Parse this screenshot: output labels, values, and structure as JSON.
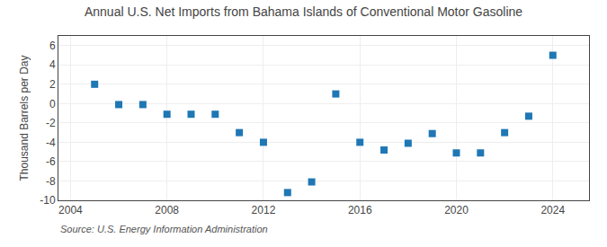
{
  "chart_data": {
    "type": "scatter",
    "title": "Annual U.S. Net Imports from Bahama Islands of Conventional Motor Gasoline",
    "ylabel": "Thousand Barrels per Day",
    "annotations": [
      "Source: U.S. Energy Information Administration"
    ],
    "x": [
      2005,
      2006,
      2007,
      2008,
      2009,
      2010,
      2011,
      2012,
      2013,
      2014,
      2015,
      2016,
      2017,
      2018,
      2019,
      2020,
      2021,
      2022,
      2023,
      2024
    ],
    "values": [
      2.0,
      -0.1,
      -0.1,
      -1.1,
      -1.1,
      -1.1,
      -3.0,
      -4.0,
      -9.2,
      -8.1,
      1.0,
      -4.0,
      -4.8,
      -4.1,
      -3.1,
      -5.1,
      -5.1,
      -3.0,
      -1.3,
      5.0
    ],
    "marker": "square",
    "xlim": [
      2003.5,
      2025.5
    ],
    "xticks": [
      2004,
      2008,
      2012,
      2016,
      2020,
      2024
    ],
    "ylim": [
      -10,
      7
    ],
    "yticks": [
      -10,
      -8,
      -6,
      -4,
      -2,
      0,
      2,
      4,
      6
    ],
    "grid": true
  }
}
